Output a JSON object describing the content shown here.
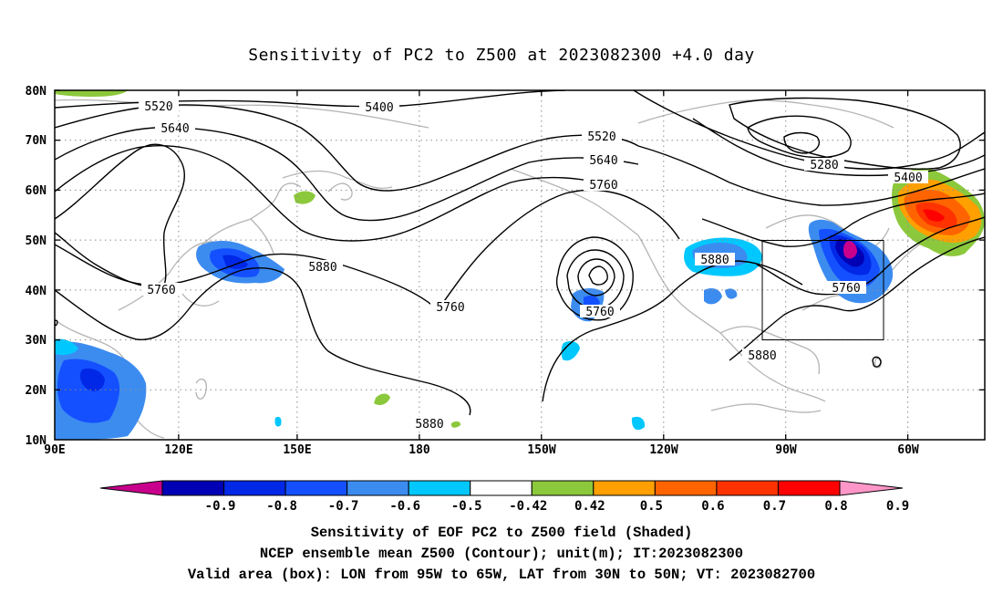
{
  "title": "Sensitivity of PC2 to Z500 at 2023082300 +4.0 day",
  "map": {
    "lat_ticks": [
      "80N",
      "70N",
      "60N",
      "50N",
      "40N",
      "30N",
      "20N",
      "10N"
    ],
    "lon_ticks": [
      "90E",
      "120E",
      "150E",
      "180",
      "150W",
      "120W",
      "90W",
      "60W"
    ],
    "contour_labels": [
      {
        "text": "5520"
      },
      {
        "text": "5640"
      },
      {
        "text": "5400"
      },
      {
        "text": "5520"
      },
      {
        "text": "5640"
      },
      {
        "text": "5760"
      },
      {
        "text": "5280"
      },
      {
        "text": "5400"
      },
      {
        "text": "5880"
      },
      {
        "text": "5760"
      },
      {
        "text": "5880"
      },
      {
        "text": "5760"
      },
      {
        "text": "5760"
      },
      {
        "text": "5880"
      },
      {
        "text": "5760"
      },
      {
        "text": "5880"
      }
    ],
    "valid_box": {
      "lon_west": "95W",
      "lon_east": "65W",
      "lat_south": "30N",
      "lat_north": "50N"
    }
  },
  "colorbar": {
    "labels": [
      "-0.9",
      "-0.8",
      "-0.7",
      "-0.6",
      "-0.5",
      "-0.42",
      "0.42",
      "0.5",
      "0.6",
      "0.7",
      "0.8",
      "0.9"
    ],
    "colors": [
      "#c8008c",
      "#0000b4",
      "#0028e6",
      "#1450ff",
      "#3c8cf0",
      "#00c8ff",
      "#ffffff",
      "#8cc83c",
      "#ffa000",
      "#ff6400",
      "#ff3200",
      "#ff0000",
      "#ff96c8"
    ]
  },
  "captions": {
    "line1": "Sensitivity of EOF PC2 to Z500 field (Shaded)",
    "line2": "NCEP ensemble mean Z500 (Contour); unit(m); IT:2023082300",
    "line3": "Valid area (box): LON from 95W to 65W, LAT from 30N to 50N; VT: 2023082700"
  }
}
